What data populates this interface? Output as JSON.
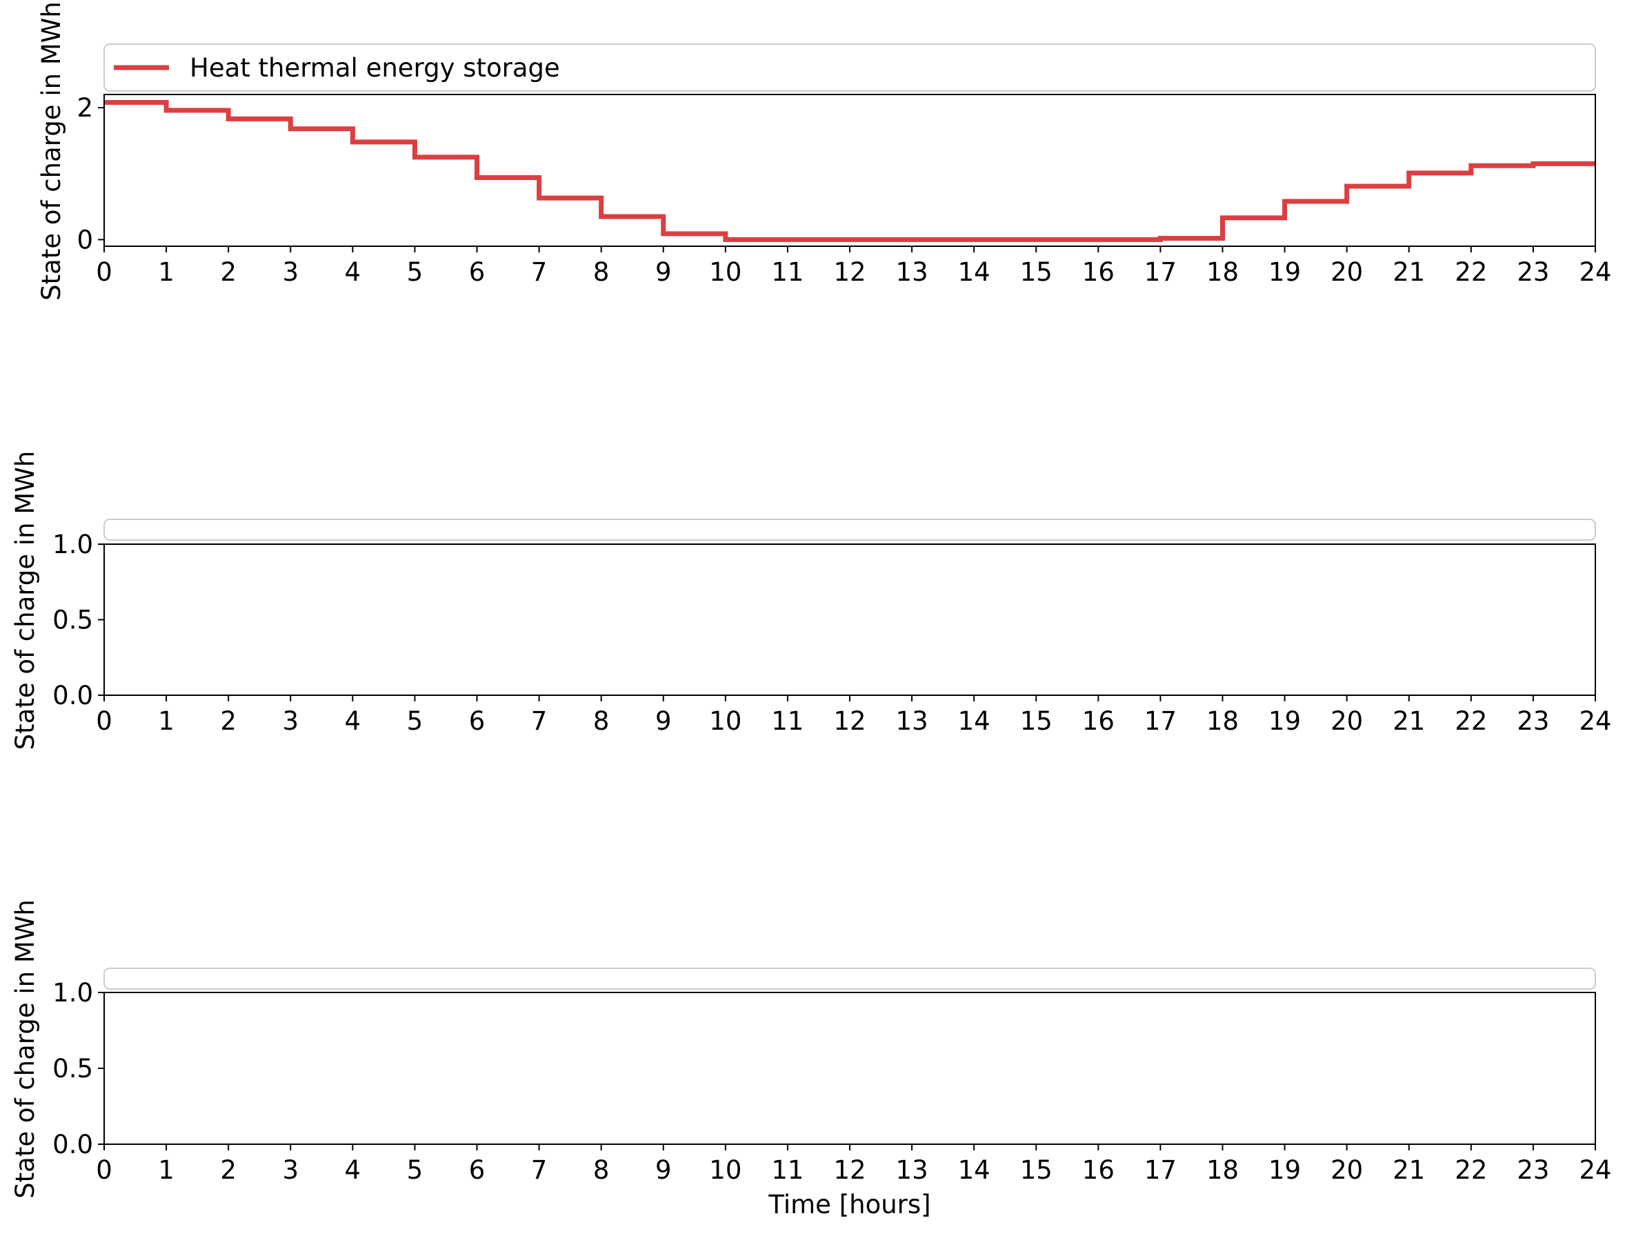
{
  "chart_data": [
    {
      "type": "line",
      "step": "post",
      "x": [
        0,
        1,
        2,
        3,
        4,
        5,
        6,
        7,
        8,
        9,
        10,
        11,
        12,
        13,
        14,
        15,
        16,
        17,
        18,
        19,
        20,
        21,
        22,
        23,
        24
      ],
      "series": [
        {
          "name": "Heat thermal energy storage",
          "color": "#dc3f41",
          "values": [
            2.08,
            1.96,
            1.83,
            1.68,
            1.48,
            1.25,
            0.94,
            0.63,
            0.35,
            0.09,
            0.0,
            0.0,
            0.0,
            0.0,
            0.0,
            0.0,
            0.0,
            0.02,
            0.33,
            0.58,
            0.81,
            1.01,
            1.12,
            1.15,
            1.15
          ]
        }
      ],
      "xlim": [
        0,
        24
      ],
      "ylim": [
        -0.1,
        2.2
      ],
      "yticks": [
        0,
        2
      ],
      "xticks": [
        0,
        1,
        2,
        3,
        4,
        5,
        6,
        7,
        8,
        9,
        10,
        11,
        12,
        13,
        14,
        15,
        16,
        17,
        18,
        19,
        20,
        21,
        22,
        23,
        24
      ],
      "xlabel": "",
      "ylabel": "State of charge in MWh",
      "legend": "top, above plot, full width",
      "grid": false
    },
    {
      "type": "line",
      "series": [],
      "xlim": [
        0,
        24
      ],
      "ylim": [
        0.0,
        1.0
      ],
      "yticks": [
        0.0,
        0.5,
        1.0
      ],
      "ytick_labels": [
        "0.0",
        "0.5",
        "1.0"
      ],
      "xticks": [
        0,
        1,
        2,
        3,
        4,
        5,
        6,
        7,
        8,
        9,
        10,
        11,
        12,
        13,
        14,
        15,
        16,
        17,
        18,
        19,
        20,
        21,
        22,
        23,
        24
      ],
      "xlabel": "",
      "ylabel": "State of charge in MWh",
      "legend": "top, above plot, full width (empty)",
      "grid": false
    },
    {
      "type": "line",
      "series": [],
      "xlim": [
        0,
        24
      ],
      "ylim": [
        0.0,
        1.0
      ],
      "yticks": [
        0.0,
        0.5,
        1.0
      ],
      "ytick_labels": [
        "0.0",
        "0.5",
        "1.0"
      ],
      "xticks": [
        0,
        1,
        2,
        3,
        4,
        5,
        6,
        7,
        8,
        9,
        10,
        11,
        12,
        13,
        14,
        15,
        16,
        17,
        18,
        19,
        20,
        21,
        22,
        23,
        24
      ],
      "xlabel": "Time [hours]",
      "ylabel": "State of charge in MWh",
      "legend": "top, above plot, full width (empty)",
      "grid": false
    }
  ]
}
